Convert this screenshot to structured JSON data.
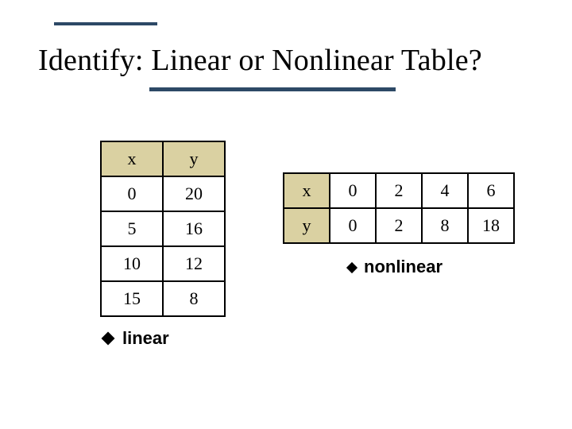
{
  "title": "Identify: Linear or Nonlinear Table?",
  "colors": {
    "rule": "#2d4966",
    "headerBg": "#dad1a2",
    "border": "#000000",
    "text": "#000000",
    "background": "#ffffff"
  },
  "tableLeft": {
    "orientation": "vertical",
    "headers": {
      "x": "x",
      "y": "y"
    },
    "rows": [
      {
        "x": "0",
        "y": "20"
      },
      {
        "x": "5",
        "y": "16"
      },
      {
        "x": "10",
        "y": "12"
      },
      {
        "x": "15",
        "y": "8"
      }
    ],
    "answer": "linear"
  },
  "tableRight": {
    "orientation": "horizontal",
    "headers": {
      "x": "x",
      "y": "y"
    },
    "xRow": [
      "0",
      "2",
      "4",
      "6"
    ],
    "yRow": [
      "0",
      "2",
      "8",
      "18"
    ],
    "answer": "nonlinear"
  },
  "style": {
    "titleFontSize": 38,
    "tableFontSize": 22,
    "answerFontSize": 22,
    "leftCellWidth": 78,
    "leftCellHeight": 44,
    "rightCellWidth": 58,
    "rightCellHeight": 44
  }
}
